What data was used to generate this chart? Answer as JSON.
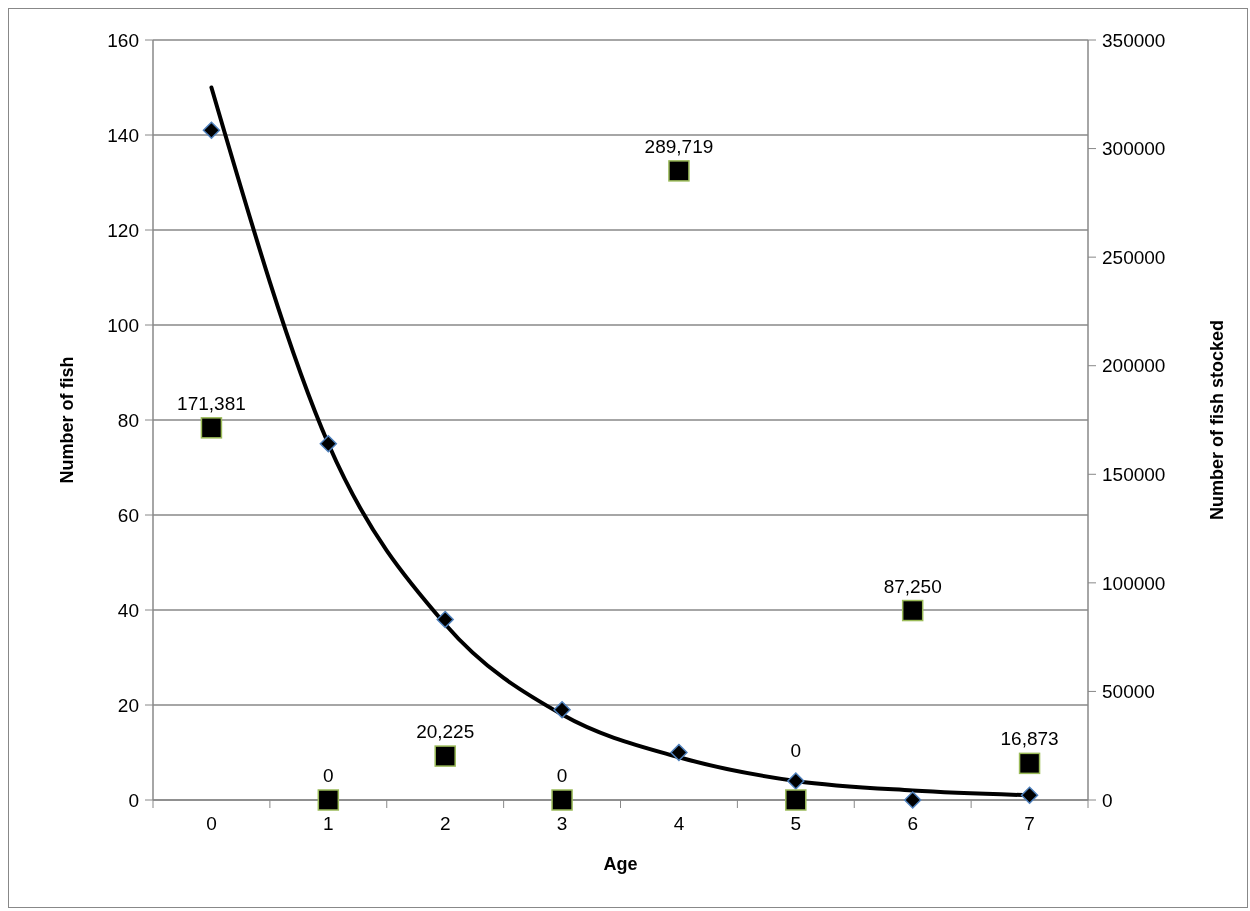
{
  "chart_data": {
    "type": "scatter",
    "categories": [
      "0",
      "1",
      "2",
      "3",
      "4",
      "5",
      "6",
      "7"
    ],
    "xlabel": "Age",
    "ylabel": "Number of fish",
    "y2label": "Number of fish stocked",
    "ylim": [
      0,
      160
    ],
    "yticks": [
      0,
      20,
      40,
      60,
      80,
      100,
      120,
      140,
      160
    ],
    "y2lim": [
      0,
      350000
    ],
    "y2ticks": [
      0,
      50000,
      100000,
      150000,
      200000,
      250000,
      300000,
      350000
    ],
    "grid": "y",
    "series": [
      {
        "type": "line",
        "color": "#000000",
        "marker": "none",
        "line_style": "solid",
        "values": [
          150,
          75,
          37,
          18,
          9,
          4,
          2,
          1
        ]
      },
      {
        "color": "#000000",
        "marker": "diamond",
        "values": [
          141,
          75,
          38,
          19,
          10,
          4,
          0,
          1
        ]
      },
      {
        "type": "scatter",
        "axis": "y2",
        "color": "#000000",
        "marker": "square",
        "values": [
          171381,
          0,
          20225,
          0,
          289719,
          0,
          87250,
          16873
        ],
        "value_labels": [
          "171,381",
          "0",
          "20,225",
          "0",
          "289,719",
          "0",
          "87,250",
          "16,873"
        ]
      }
    ]
  }
}
